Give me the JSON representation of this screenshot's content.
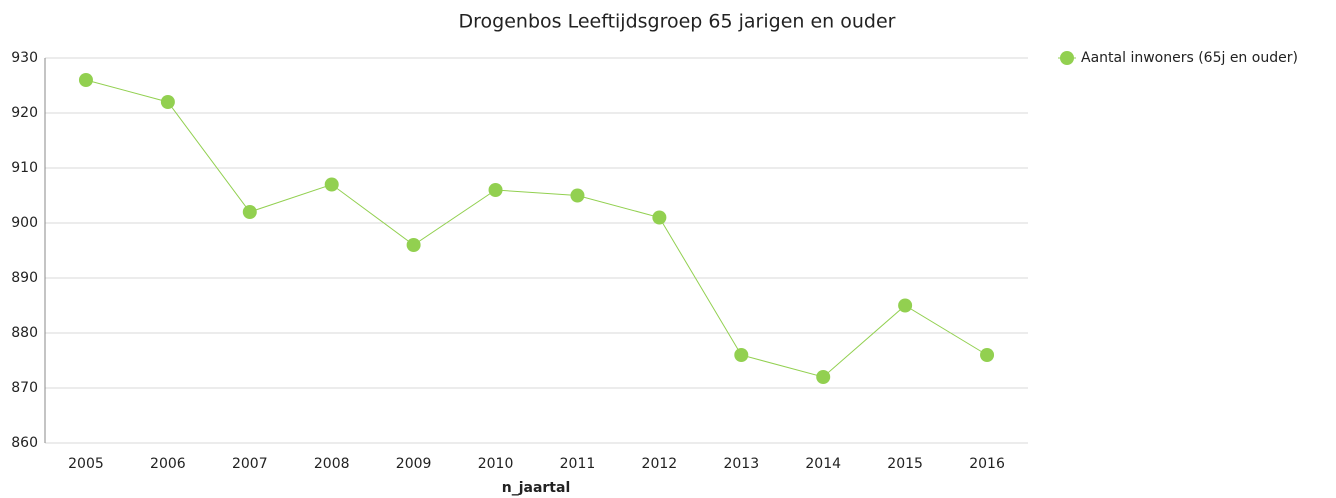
{
  "chart_data": {
    "type": "line",
    "title": "Drogenbos  Leeftijdsgroep 65 jarigen en ouder",
    "x_label": "n_jaartal",
    "categories": [
      "2005",
      "2006",
      "2007",
      "2008",
      "2009",
      "2010",
      "2011",
      "2012",
      "2013",
      "2014",
      "2015",
      "2016"
    ],
    "series": [
      {
        "name": "Aantal inwoners (65j en ouder)",
        "color": "#92d050",
        "values": [
          926,
          922,
          902,
          907,
          896,
          906,
          905,
          901,
          876,
          872,
          885,
          876
        ]
      }
    ],
    "ylim": [
      860,
      930
    ],
    "yticks": [
      860,
      870,
      880,
      890,
      900,
      910,
      920,
      930
    ],
    "grid": true,
    "legend": "top-right"
  }
}
